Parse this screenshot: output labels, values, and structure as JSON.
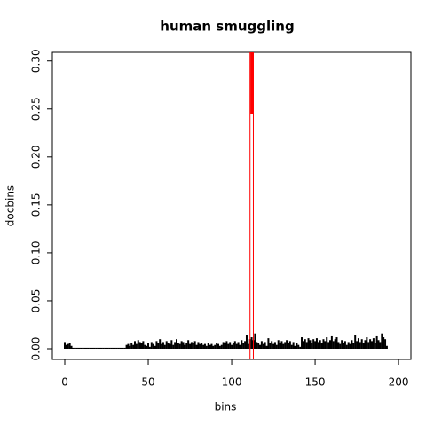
{
  "chart_data": {
    "type": "spike",
    "title": "human smuggling",
    "x_label": "bins",
    "y_label": "docbins",
    "xlim": [
      -7.45,
      207.4
    ],
    "ylim": [
      -0.0111,
      0.309
    ],
    "xticks": [
      0,
      50,
      100,
      150,
      200
    ],
    "yticks": [
      {
        "value": 0,
        "label": "0.00"
      },
      {
        "value": 0.05,
        "label": "0.05"
      },
      {
        "value": 0.1,
        "label": "0.10"
      },
      {
        "value": 0.15,
        "label": "0.15"
      },
      {
        "value": 0.2,
        "label": "0.20"
      },
      {
        "value": 0.25,
        "label": "0.25"
      },
      {
        "value": 0.3,
        "label": "0.30"
      }
    ],
    "color": "#000000",
    "x": [
      0,
      1,
      2,
      3,
      4,
      5,
      6,
      7,
      8,
      9,
      10,
      11,
      12,
      13,
      14,
      15,
      16,
      17,
      18,
      19,
      20,
      21,
      22,
      23,
      24,
      25,
      26,
      27,
      28,
      29,
      30,
      31,
      32,
      33,
      34,
      35,
      36,
      37,
      38,
      39,
      40,
      41,
      42,
      43,
      44,
      45,
      46,
      47,
      48,
      49,
      50,
      51,
      52,
      53,
      54,
      55,
      56,
      57,
      58,
      59,
      60,
      61,
      62,
      63,
      64,
      65,
      66,
      67,
      68,
      69,
      70,
      71,
      72,
      73,
      74,
      75,
      76,
      77,
      78,
      79,
      80,
      81,
      82,
      83,
      84,
      85,
      86,
      87,
      88,
      89,
      90,
      91,
      92,
      93,
      94,
      95,
      96,
      97,
      98,
      99,
      100,
      101,
      102,
      103,
      104,
      105,
      106,
      107,
      108,
      109,
      110,
      111,
      112,
      113,
      114,
      115,
      116,
      117,
      118,
      119,
      120,
      121,
      122,
      123,
      124,
      125,
      126,
      127,
      128,
      129,
      130,
      131,
      132,
      133,
      134,
      135,
      136,
      137,
      138,
      139,
      140,
      141,
      142,
      143,
      144,
      145,
      146,
      147,
      148,
      149,
      150,
      151,
      152,
      153,
      154,
      155,
      156,
      157,
      158,
      159,
      160,
      161,
      162,
      163,
      164,
      165,
      166,
      167,
      168,
      169,
      170,
      171,
      172,
      173,
      174,
      175,
      176,
      177,
      178,
      179,
      180,
      181,
      182,
      183,
      184,
      185,
      186,
      187,
      188,
      189,
      190,
      191,
      192,
      193
    ],
    "values": [
      0.007,
      0.004,
      0.005,
      0.006,
      0.003,
      0.001,
      0.001,
      0.001,
      0.001,
      0.001,
      0.001,
      0.001,
      0.001,
      0.001,
      0.001,
      0.001,
      0.001,
      0.001,
      0.001,
      0.001,
      0.001,
      0.001,
      0.001,
      0.001,
      0.001,
      0.001,
      0.001,
      0.001,
      0.001,
      0.001,
      0.001,
      0.001,
      0.001,
      0.001,
      0.001,
      0.001,
      0.001,
      0.004,
      0.005,
      0.003,
      0.006,
      0.004,
      0.008,
      0.005,
      0.009,
      0.007,
      0.006,
      0.008,
      0.004,
      0.003,
      0.006,
      0.002,
      0.007,
      0.005,
      0.003,
      0.008,
      0.006,
      0.01,
      0.005,
      0.007,
      0.004,
      0.008,
      0.006,
      0.005,
      0.009,
      0.004,
      0.007,
      0.01,
      0.006,
      0.005,
      0.008,
      0.007,
      0.004,
      0.006,
      0.009,
      0.005,
      0.007,
      0.006,
      0.008,
      0.004,
      0.007,
      0.005,
      0.006,
      0.004,
      0.005,
      0.003,
      0.006,
      0.004,
      0.005,
      0.003,
      0.004,
      0.006,
      0.005,
      0.003,
      0.004,
      0.007,
      0.006,
      0.008,
      0.005,
      0.007,
      0.004,
      0.006,
      0.008,
      0.005,
      0.007,
      0.004,
      0.009,
      0.006,
      0.008,
      0.014,
      0.005,
      0.01,
      0.012,
      0.009,
      0.016,
      0.007,
      0.006,
      0.004,
      0.008,
      0.005,
      0.007,
      0.003,
      0.011,
      0.006,
      0.008,
      0.005,
      0.007,
      0.004,
      0.009,
      0.006,
      0.008,
      0.005,
      0.007,
      0.009,
      0.006,
      0.008,
      0.004,
      0.007,
      0.003,
      0.006,
      0.004,
      0.002,
      0.012,
      0.008,
      0.01,
      0.007,
      0.011,
      0.009,
      0.006,
      0.01,
      0.008,
      0.011,
      0.007,
      0.009,
      0.006,
      0.01,
      0.008,
      0.012,
      0.007,
      0.009,
      0.013,
      0.008,
      0.01,
      0.012,
      0.007,
      0.005,
      0.009,
      0.006,
      0.008,
      0.004,
      0.007,
      0.005,
      0.009,
      0.006,
      0.014,
      0.008,
      0.011,
      0.007,
      0.01,
      0.006,
      0.009,
      0.012,
      0.007,
      0.01,
      0.008,
      0.011,
      0.006,
      0.013,
      0.009,
      0.007,
      0.016,
      0.012,
      0.01,
      0.003
    ],
    "vlines": {
      "color": "#ff0000",
      "x": [
        111,
        113
      ]
    },
    "highlight": {
      "color": "#ff0000",
      "x": 112,
      "from": 0.245,
      "to": 0.309
    }
  }
}
